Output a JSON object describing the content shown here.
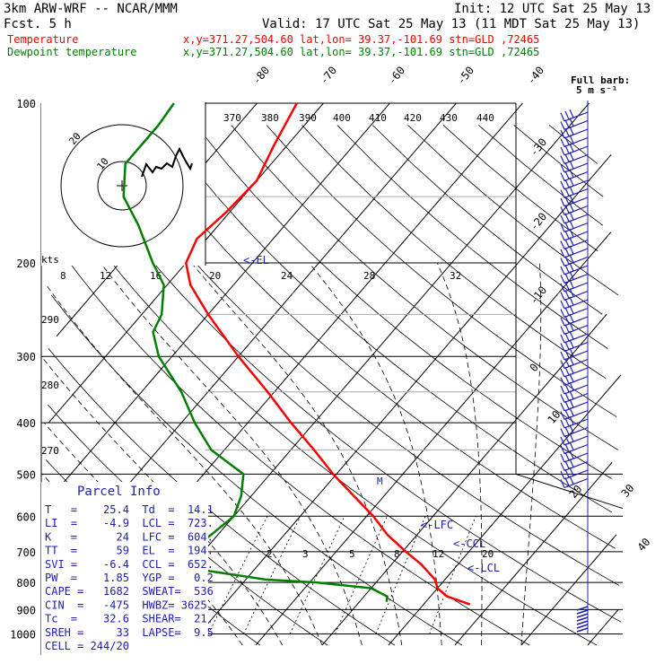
{
  "header": {
    "model": "3km ARW-WRF -- NCAR/MMM",
    "init": "Init: 12 UTC Sat 25 May 13",
    "fcst": "Fcst.    5 h",
    "valid": "Valid: 17 UTC Sat 25 May 13 (11 MDT Sat 25 May 13)",
    "temp_label": "Temperature",
    "dew_label": "Dewpoint temperature",
    "temp_loc": "x,y=371.27,504.60   lat,lon= 39.37,-101.69  stn=GLD ,72465",
    "dew_loc": "x,y=371.27,504.60   lat,lon= 39.37,-101.69  stn=GLD ,72465",
    "barb_title": "Full barb:",
    "barb_units": "5 m s⁻¹"
  },
  "colors": {
    "temperature": "#ff0000",
    "dewpoint": "#008000",
    "parcel_text": "#2020b0",
    "grid": "#000000"
  },
  "pressure_labels": [
    "100",
    "200",
    "300",
    "400",
    "500",
    "600",
    "700",
    "800",
    "900",
    "1000"
  ],
  "isotherm_labels": [
    "-80",
    "-70",
    "-60",
    "-50",
    "-40",
    "-30",
    "-20",
    "-10",
    "0",
    "10",
    "20",
    "30",
    "40"
  ],
  "theta_labels": [
    "370",
    "380",
    "390",
    "400",
    "410",
    "420",
    "430",
    "440"
  ],
  "hodograph": {
    "kts_label": "kts",
    "speed_labels": [
      "8",
      "12",
      "16",
      "20",
      "24",
      "28",
      "32"
    ],
    "ring_labels": [
      "20",
      "10"
    ]
  },
  "dry_adiabat_labels": [
    "290",
    "280",
    "270"
  ],
  "mixing_ratio_labels": [
    "2",
    "3",
    "5",
    "8",
    "12",
    "20"
  ],
  "level_labels": {
    "el": "<-EL",
    "lfc": "<-LFC",
    "ccl": "<-CCL",
    "lcl": "<-LCL",
    "m": "M"
  },
  "parcel_info": {
    "title": "Parcel Info",
    "rows": [
      "T   =    25.4  Td  =  14.1",
      "LI  =    -4.9  LCL =  723.",
      "K   =      24  LFC =  604.",
      "TT  =      59  EL  =  194.",
      "SVI =    -6.4  CCL =  652.",
      "PW  =    1.85  YGP =   0.2",
      "CAPE =   1682  SWEAT=  536",
      "CIN  =   -475  HWBZ= 3625.",
      "Tc  =    32.6  SHEAR=  21.",
      "SREH =     33  LAPSE=  9.5",
      "CELL = 244/20"
    ]
  },
  "chart_data": {
    "type": "line",
    "title": "",
    "xlabel": "",
    "ylabel": "",
    "y_axis": "pressure (hPa, log scale, decreasing upward)",
    "ylim": [
      1000,
      100
    ],
    "x_axis": "skewed isotherms (deg C)",
    "series": [
      {
        "name": "Temperature",
        "points": [
          {
            "p": 880,
            "t": 27.0
          },
          {
            "p": 850,
            "t": 22.5
          },
          {
            "p": 820,
            "t": 20.0
          },
          {
            "p": 790,
            "t": 18.5
          },
          {
            "p": 740,
            "t": 14.5
          },
          {
            "p": 700,
            "t": 10.5
          },
          {
            "p": 650,
            "t": 5.5
          },
          {
            "p": 600,
            "t": 1.0
          },
          {
            "p": 550,
            "t": -4.5
          },
          {
            "p": 500,
            "t": -10.5
          },
          {
            "p": 450,
            "t": -16.5
          },
          {
            "p": 400,
            "t": -23.5
          },
          {
            "p": 350,
            "t": -31.0
          },
          {
            "p": 300,
            "t": -40.0
          },
          {
            "p": 250,
            "t": -50.0
          },
          {
            "p": 220,
            "t": -56.5
          },
          {
            "p": 200,
            "t": -60.0
          },
          {
            "p": 180,
            "t": -61.5
          },
          {
            "p": 160,
            "t": -60.5
          },
          {
            "p": 140,
            "t": -60.0
          },
          {
            "p": 120,
            "t": -62.0
          },
          {
            "p": 100,
            "t": -64.0
          }
        ]
      },
      {
        "name": "Dewpoint temperature",
        "points": [
          {
            "p": 870,
            "t": 14.1
          },
          {
            "p": 850,
            "t": 13.5
          },
          {
            "p": 820,
            "t": 10.0
          },
          {
            "p": 800,
            "t": 1.0
          },
          {
            "p": 790,
            "t": -7.0
          },
          {
            "p": 760,
            "t": -17.0
          },
          {
            "p": 720,
            "t": -21.0
          },
          {
            "p": 690,
            "t": -22.0
          },
          {
            "p": 650,
            "t": -21.0
          },
          {
            "p": 600,
            "t": -20.0
          },
          {
            "p": 550,
            "t": -21.5
          },
          {
            "p": 500,
            "t": -24.0
          },
          {
            "p": 450,
            "t": -32.0
          },
          {
            "p": 400,
            "t": -38.0
          },
          {
            "p": 350,
            "t": -44.0
          },
          {
            "p": 300,
            "t": -52.0
          },
          {
            "p": 270,
            "t": -56.0
          },
          {
            "p": 250,
            "t": -57.0
          },
          {
            "p": 220,
            "t": -60.5
          },
          {
            "p": 200,
            "t": -65.0
          },
          {
            "p": 170,
            "t": -72.0
          },
          {
            "p": 150,
            "t": -78.0
          },
          {
            "p": 130,
            "t": -82.0
          },
          {
            "p": 110,
            "t": -82.0
          },
          {
            "p": 100,
            "t": -82.5
          }
        ]
      }
    ],
    "wind_barbs_kts_by_pressure": [
      {
        "p": 110,
        "speed": 35
      },
      {
        "p": 150,
        "speed": 40
      },
      {
        "p": 200,
        "speed": 45
      },
      {
        "p": 250,
        "speed": 40
      },
      {
        "p": 300,
        "speed": 35
      },
      {
        "p": 400,
        "speed": 30
      },
      {
        "p": 500,
        "speed": 25
      },
      {
        "p": 870,
        "speed": 10
      }
    ]
  }
}
